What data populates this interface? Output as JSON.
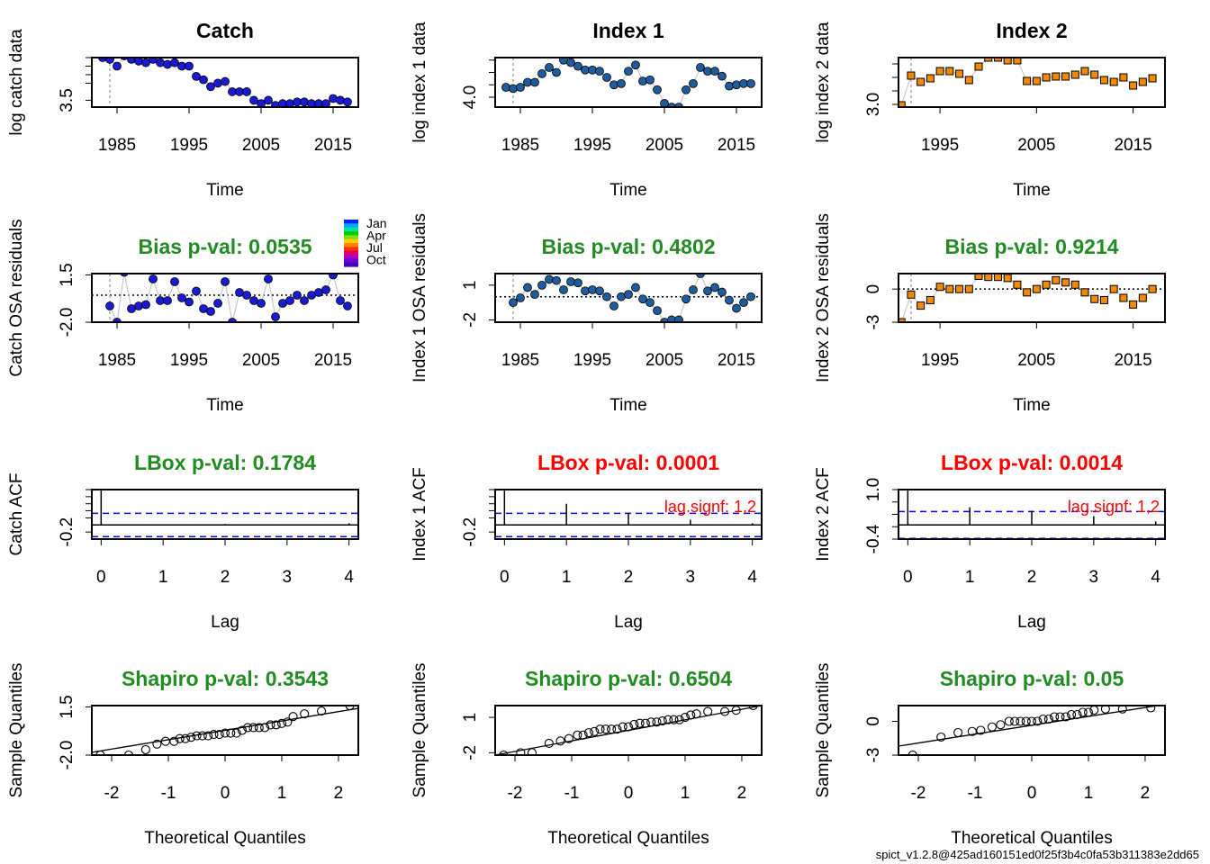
{
  "footer": "spict_v1.2.8@425ad160151ed0f25f3b4c0fa53b311383e2dd65",
  "colors": {
    "catch": "#1a1ad6",
    "index1": "#1f5c9e",
    "index2": "#f28a00",
    "good": "#228b22",
    "bad": "#ff0000",
    "conf": "#0000ff",
    "line": "#c8c8c8"
  },
  "legend": {
    "labels": [
      "Jan",
      "Apr",
      "Jul",
      "Oct"
    ]
  },
  "chart_data": [
    {
      "id": "catch-data",
      "type": "scatter",
      "title": "Catch",
      "xlabel": "Time",
      "ylabel": "log catch data",
      "xlim": [
        1981.5,
        2018.5
      ],
      "ylim": [
        3.3,
        4.75
      ],
      "xticks": [
        1985,
        1995,
        2005,
        2015
      ],
      "yticks": [
        3.5
      ],
      "yticks_minor": [
        4.0,
        4.25,
        4.5,
        4.75
      ],
      "vline": 1984,
      "marker": "circle",
      "color_key": "catch",
      "x": [
        1983,
        1984,
        1985,
        1986,
        1987,
        1988,
        1989,
        1990,
        1991,
        1992,
        1993,
        1994,
        1995,
        1996,
        1997,
        1998,
        1999,
        2000,
        2001,
        2002,
        2003,
        2004,
        2005,
        2006,
        2007,
        2008,
        2009,
        2010,
        2011,
        2012,
        2013,
        2014,
        2015,
        2016,
        2017
      ],
      "values": [
        4.75,
        4.7,
        4.5,
        4.8,
        4.7,
        4.65,
        4.6,
        4.7,
        4.6,
        4.55,
        4.6,
        4.5,
        4.5,
        4.2,
        4.1,
        3.9,
        4.0,
        4.05,
        3.75,
        3.75,
        3.75,
        3.5,
        3.4,
        3.5,
        3.35,
        3.4,
        3.4,
        3.45,
        3.45,
        3.4,
        3.4,
        3.4,
        3.55,
        3.5,
        3.45
      ]
    },
    {
      "id": "index1-data",
      "type": "scatter",
      "title": "Index 1",
      "xlabel": "Time",
      "ylabel": "log index 1 data",
      "xlim": [
        1981.5,
        2018.5
      ],
      "ylim": [
        3.6,
        5.6
      ],
      "xticks": [
        1985,
        1995,
        2005,
        2015
      ],
      "yticks": [
        4.0
      ],
      "yticks_minor": [
        4.5,
        5.0,
        5.5
      ],
      "vline": 1984,
      "marker": "circle",
      "color_key": "index1",
      "x": [
        1983,
        1984,
        1985,
        1986,
        1987,
        1988,
        1989,
        1990,
        1991,
        1992,
        1993,
        1994,
        1995,
        1996,
        1997,
        1998,
        1999,
        2000,
        2001,
        2002,
        2003,
        2004,
        2005,
        2006,
        2007,
        2008,
        2009,
        2010,
        2011,
        2012,
        2013,
        2014,
        2015,
        2016,
        2017
      ],
      "values": [
        4.4,
        4.35,
        4.4,
        4.6,
        4.6,
        4.95,
        5.2,
        5.0,
        5.5,
        5.4,
        5.25,
        5.1,
        5.1,
        5.05,
        4.8,
        4.5,
        4.55,
        5.05,
        5.3,
        4.65,
        4.7,
        4.3,
        3.75,
        3.6,
        3.6,
        4.3,
        4.55,
        5.2,
        5.05,
        5.05,
        4.85,
        4.45,
        4.5,
        4.55,
        4.55
      ]
    },
    {
      "id": "index2-data",
      "type": "scatter",
      "title": "Index 2",
      "xlabel": "Time",
      "ylabel": "log index 2 data",
      "xlim": [
        1990.7,
        2018.3
      ],
      "ylim": [
        2.85,
        5.6
      ],
      "xticks": [
        1995,
        2005,
        2015
      ],
      "yticks": [
        3.0
      ],
      "yticks_minor": [
        3.75,
        4.5,
        5.25
      ],
      "vline": 1992,
      "marker": "square",
      "color_key": "index2",
      "x": [
        1991,
        1992,
        1993,
        1994,
        1995,
        1996,
        1997,
        1998,
        1999,
        2000,
        2001,
        2002,
        2003,
        2004,
        2005,
        2006,
        2007,
        2008,
        2009,
        2010,
        2011,
        2012,
        2013,
        2014,
        2015,
        2016,
        2017
      ],
      "values": [
        2.95,
        4.6,
        4.25,
        4.45,
        4.85,
        4.85,
        4.7,
        4.35,
        5.1,
        5.6,
        5.6,
        5.45,
        5.45,
        4.3,
        4.3,
        4.5,
        4.55,
        4.55,
        4.65,
        4.85,
        4.65,
        4.35,
        4.25,
        4.5,
        4.05,
        4.25,
        4.45
      ]
    },
    {
      "id": "catch-resid",
      "type": "scatter",
      "title": "Bias p-val: 0.0535",
      "title_key": "good",
      "xlabel": "Time",
      "ylabel": "Catch OSA residuals",
      "xlim": [
        1981.5,
        2018.5
      ],
      "ylim": [
        -2.0,
        1.6
      ],
      "xticks": [
        1985,
        1995,
        2005,
        2015
      ],
      "yticks": [
        -2.0,
        1.5
      ],
      "hline": 0,
      "vline": 1984,
      "marker": "circle",
      "color_mode": "month",
      "x": [
        1984,
        1985,
        1986,
        1987,
        1988,
        1989,
        1990,
        1991,
        1992,
        1993,
        1994,
        1995,
        1996,
        1997,
        1998,
        1999,
        2000,
        2001,
        2002,
        2003,
        2004,
        2005,
        2006,
        2007,
        2008,
        2009,
        2010,
        2011,
        2012,
        2013,
        2014,
        2015,
        2016,
        2017
      ],
      "values": [
        -0.8,
        -2.0,
        1.7,
        -1.0,
        -0.8,
        -0.7,
        1.2,
        -0.4,
        -0.4,
        1.0,
        -0.2,
        -0.5,
        0.3,
        -1.0,
        -1.2,
        -0.6,
        1.0,
        -2.0,
        0.2,
        0.0,
        -0.4,
        -0.6,
        1.2,
        -1.6,
        -0.6,
        -0.4,
        0.0,
        -0.4,
        0.0,
        0.2,
        0.4,
        1.5,
        -0.4,
        -0.8
      ]
    },
    {
      "id": "index1-resid",
      "type": "scatter",
      "title": "Bias p-val: 0.4802",
      "title_key": "good",
      "xlabel": "Time",
      "ylabel": "Index 1 OSA residuals",
      "xlim": [
        1981.5,
        2018.5
      ],
      "ylim": [
        -2.2,
        2.0
      ],
      "xticks": [
        1985,
        1995,
        2005,
        2015
      ],
      "yticks": [
        -2,
        1
      ],
      "hline": 0,
      "vline": 1984,
      "marker": "circle",
      "color_key": "index1",
      "x": [
        1984,
        1985,
        1986,
        1987,
        1988,
        1989,
        1990,
        1991,
        1992,
        1993,
        1994,
        1995,
        1996,
        1997,
        1998,
        1999,
        2000,
        2001,
        2002,
        2003,
        2004,
        2005,
        2006,
        2007,
        2008,
        2009,
        2010,
        2011,
        2012,
        2013,
        2014,
        2015,
        2016,
        2017
      ],
      "values": [
        -0.5,
        -0.1,
        0.8,
        0.2,
        1.0,
        1.5,
        1.4,
        0.6,
        1.3,
        1.2,
        0.5,
        0.6,
        0.5,
        0.0,
        -0.8,
        0.0,
        0.2,
        0.8,
        -0.2,
        -0.5,
        -1.2,
        -2.2,
        -2.0,
        -2.0,
        -0.2,
        0.6,
        2.0,
        0.5,
        0.8,
        0.4,
        -0.3,
        -1.0,
        -0.5,
        0.0
      ]
    },
    {
      "id": "index2-resid",
      "type": "scatter",
      "title": "Bias p-val: 0.9214",
      "title_key": "good",
      "xlabel": "Time",
      "ylabel": "Index 2 OSA residuals",
      "xlim": [
        1990.7,
        2018.3
      ],
      "ylim": [
        -3.0,
        1.4
      ],
      "xticks": [
        1995,
        2005,
        2015
      ],
      "yticks": [
        -3,
        0
      ],
      "hline": 0,
      "vline": 1992,
      "marker": "square",
      "color_key": "index2",
      "x": [
        1991,
        1992,
        1993,
        1994,
        1995,
        1996,
        1997,
        1998,
        1999,
        2000,
        2001,
        2002,
        2003,
        2004,
        2005,
        2006,
        2007,
        2008,
        2009,
        2010,
        2011,
        2012,
        2013,
        2014,
        2015,
        2016,
        2017
      ],
      "values": [
        -3.0,
        -0.5,
        -1.5,
        -1.0,
        0.2,
        0.0,
        0.0,
        0.0,
        1.2,
        1.1,
        1.1,
        1.0,
        0.4,
        -0.3,
        0.0,
        0.4,
        0.8,
        0.6,
        0.4,
        -0.3,
        -0.9,
        -1.0,
        0.0,
        -0.8,
        -1.4,
        -0.8,
        0.0
      ]
    },
    {
      "id": "catch-acf",
      "type": "bar",
      "title": "LBox p-val: 0.1784",
      "title_key": "good",
      "xlabel": "Lag",
      "ylabel": "Catch ACF",
      "xlim": [
        -0.15,
        4.15
      ],
      "ylim": [
        -0.4,
        1.0
      ],
      "xticks": [
        0,
        1,
        2,
        3,
        4
      ],
      "yticks": [
        -0.2
      ],
      "yticks_minor": [
        0.2,
        0.4,
        0.6,
        0.8,
        1.0
      ],
      "hline": 0,
      "conf": [
        0.33,
        -0.33
      ],
      "lags": [
        0,
        1,
        2,
        3,
        4
      ],
      "values": [
        1.0,
        0.02,
        0.03,
        0.01,
        0.05
      ],
      "signf": ""
    },
    {
      "id": "index1-acf",
      "type": "bar",
      "title": "LBox p-val: 0.0001",
      "title_key": "bad",
      "xlabel": "Lag",
      "ylabel": "Index 1 ACF",
      "xlim": [
        -0.15,
        4.15
      ],
      "ylim": [
        -0.4,
        1.0
      ],
      "xticks": [
        0,
        1,
        2,
        3,
        4
      ],
      "yticks": [
        -0.2
      ],
      "yticks_minor": [
        0.2,
        0.4,
        0.6,
        0.8,
        1.0
      ],
      "hline": 0,
      "conf": [
        0.33,
        -0.33
      ],
      "lags": [
        0,
        1,
        2,
        3,
        4
      ],
      "values": [
        1.0,
        0.6,
        0.35,
        0.15,
        0.05
      ],
      "signf": "lag.signf: 1,2"
    },
    {
      "id": "index2-acf",
      "type": "bar",
      "title": "LBox p-val: 0.0014",
      "title_key": "bad",
      "xlabel": "Lag",
      "ylabel": "Index 2 ACF",
      "xlim": [
        -0.15,
        4.15
      ],
      "ylim": [
        -0.4,
        1.0
      ],
      "xticks": [
        0,
        1,
        2,
        3,
        4
      ],
      "yticks": [
        -0.4,
        1.0
      ],
      "yticks_minor": [
        -0.05,
        0.3,
        0.65
      ],
      "hline": 0,
      "conf": [
        0.38,
        -0.38
      ],
      "lags": [
        0,
        1,
        2,
        3,
        4
      ],
      "values": [
        1.0,
        0.5,
        0.4,
        0.25,
        0.1
      ],
      "signf": "lag.signf: 1,2"
    },
    {
      "id": "catch-qq",
      "type": "scatter",
      "title": "Shapiro p-val: 0.3543",
      "title_key": "good",
      "xlabel": "Theoretical Quantiles",
      "ylabel": "Sample Quantiles",
      "xlim": [
        -2.35,
        2.35
      ],
      "ylim": [
        -2.0,
        1.6
      ],
      "xticks": [
        -2,
        -1,
        0,
        1,
        2
      ],
      "yticks": [
        -2.0,
        1.5
      ],
      "line": [
        [
          -2.35,
          -1.8
        ],
        [
          2.35,
          1.4
        ]
      ],
      "marker": "open",
      "x": [
        -2.2,
        -1.7,
        -1.4,
        -1.2,
        -1.05,
        -0.9,
        -0.8,
        -0.7,
        -0.6,
        -0.5,
        -0.4,
        -0.3,
        -0.2,
        -0.1,
        0.0,
        0.1,
        0.2,
        0.3,
        0.4,
        0.5,
        0.6,
        0.7,
        0.8,
        0.9,
        1.0,
        1.1,
        1.2,
        1.4,
        1.7,
        2.2
      ],
      "values": [
        -2.0,
        -2.0,
        -1.6,
        -1.2,
        -1.0,
        -1.0,
        -0.8,
        -0.8,
        -0.7,
        -0.6,
        -0.6,
        -0.6,
        -0.5,
        -0.5,
        -0.4,
        -0.4,
        -0.4,
        -0.2,
        0.0,
        0.0,
        0.0,
        0.0,
        0.2,
        0.2,
        0.3,
        0.4,
        0.8,
        1.0,
        1.2,
        1.6
      ]
    },
    {
      "id": "index1-qq",
      "type": "scatter",
      "title": "Shapiro p-val: 0.6504",
      "title_key": "good",
      "xlabel": "Theoretical Quantiles",
      "ylabel": "Sample Quantiles",
      "xlim": [
        -2.35,
        2.35
      ],
      "ylim": [
        -2.2,
        2.0
      ],
      "xticks": [
        -2,
        -1,
        0,
        1,
        2
      ],
      "yticks": [
        -2,
        1
      ],
      "line": [
        [
          -2.35,
          -2.2
        ],
        [
          2.35,
          2.0
        ]
      ],
      "marker": "open",
      "x": [
        -2.2,
        -1.9,
        -1.7,
        -1.4,
        -1.2,
        -1.05,
        -0.9,
        -0.8,
        -0.7,
        -0.6,
        -0.5,
        -0.4,
        -0.3,
        -0.2,
        -0.1,
        0.0,
        0.1,
        0.2,
        0.3,
        0.4,
        0.5,
        0.6,
        0.7,
        0.8,
        0.9,
        1.0,
        1.1,
        1.2,
        1.4,
        1.7,
        1.9,
        2.2
      ],
      "values": [
        -2.2,
        -2.0,
        -2.0,
        -1.2,
        -1.0,
        -0.8,
        -0.5,
        -0.5,
        -0.3,
        -0.2,
        0.0,
        0.0,
        0.0,
        0.0,
        0.2,
        0.2,
        0.4,
        0.5,
        0.5,
        0.6,
        0.6,
        0.7,
        0.8,
        0.8,
        0.8,
        1.0,
        1.2,
        1.3,
        1.5,
        1.5,
        1.6,
        2.0
      ]
    },
    {
      "id": "index2-qq",
      "type": "scatter",
      "title": "Shapiro p-val: 0.05",
      "title_key": "good",
      "xlabel": "Theoretical Quantiles",
      "ylabel": "Sample Quantiles",
      "xlim": [
        -2.35,
        2.35
      ],
      "ylim": [
        -3.0,
        1.4
      ],
      "xticks": [
        -2,
        -1,
        0,
        1,
        2
      ],
      "yticks": [
        -3,
        0
      ],
      "line": [
        [
          -2.35,
          -2.2
        ],
        [
          2.35,
          1.5
        ]
      ],
      "marker": "open",
      "x": [
        -2.1,
        -1.6,
        -1.3,
        -1.05,
        -0.9,
        -0.7,
        -0.55,
        -0.4,
        -0.3,
        -0.2,
        -0.1,
        0.0,
        0.1,
        0.2,
        0.3,
        0.4,
        0.5,
        0.6,
        0.7,
        0.8,
        0.9,
        1.0,
        1.1,
        1.3,
        1.6,
        2.1
      ],
      "values": [
        -3.0,
        -1.4,
        -1.0,
        -0.9,
        -0.8,
        -0.5,
        -0.3,
        0.0,
        0.0,
        0.0,
        0.0,
        0.0,
        0.0,
        0.2,
        0.2,
        0.4,
        0.4,
        0.4,
        0.6,
        0.6,
        0.8,
        0.8,
        1.0,
        1.1,
        1.1,
        1.2
      ]
    }
  ]
}
